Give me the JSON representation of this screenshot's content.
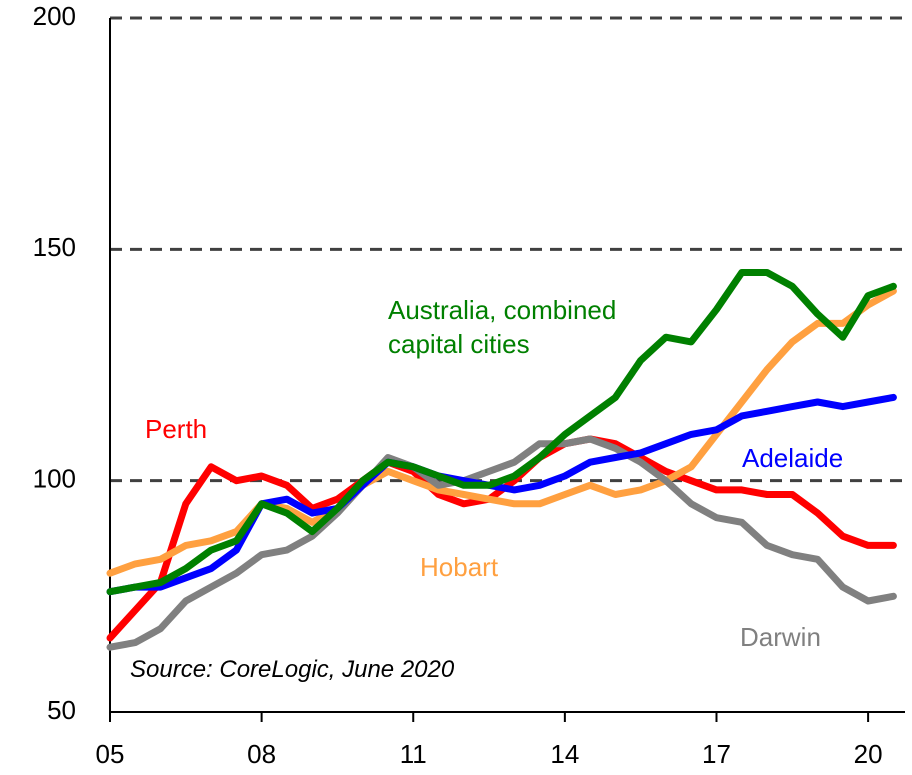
{
  "chart_data": {
    "type": "line",
    "annotations": [
      "Source: CoreLogic, June 2020"
    ],
    "x": [
      2005,
      2005.5,
      2006,
      2006.5,
      2007,
      2007.5,
      2008,
      2008.5,
      2009,
      2009.5,
      2010,
      2010.5,
      2011,
      2011.5,
      2012,
      2012.5,
      2013,
      2013.5,
      2014,
      2014.5,
      2015,
      2015.5,
      2016,
      2016.5,
      2017,
      2017.5,
      2018,
      2018.5,
      2019,
      2019.5,
      2020,
      2020.5
    ],
    "series": [
      {
        "name": "Perth",
        "color": "#ff0000",
        "values": [
          66,
          72,
          78,
          95,
          103,
          100,
          101,
          99,
          94,
          96,
          100,
          104,
          102,
          97,
          95,
          96,
          100,
          105,
          108,
          109,
          108,
          105,
          102,
          100,
          98,
          98,
          97,
          97,
          93,
          88,
          86,
          86
        ]
      },
      {
        "name": "Hobart",
        "color": "#ffa040",
        "values": [
          80,
          82,
          83,
          86,
          87,
          89,
          95,
          94,
          91,
          94,
          99,
          102,
          100,
          98,
          97,
          96,
          95,
          95,
          97,
          99,
          97,
          98,
          100,
          103,
          110,
          117,
          124,
          130,
          134,
          134,
          138,
          141
        ]
      },
      {
        "name": "Darwin",
        "color": "#808080",
        "values": [
          64,
          65,
          68,
          74,
          77,
          80,
          84,
          85,
          88,
          93,
          99,
          105,
          103,
          99,
          100,
          102,
          104,
          108,
          108,
          109,
          107,
          104,
          100,
          95,
          92,
          91,
          86,
          84,
          83,
          77,
          74,
          75
        ]
      },
      {
        "name": "Adelaide",
        "color": "#0000ff",
        "values": [
          76,
          77,
          77,
          79,
          81,
          85,
          95,
          96,
          93,
          94,
          99,
          104,
          103,
          101,
          100,
          99,
          98,
          99,
          101,
          104,
          105,
          106,
          108,
          110,
          111,
          114,
          115,
          116,
          117,
          116,
          117,
          118
        ]
      },
      {
        "name": "Australia, combined\ncapital cities",
        "color": "#008000",
        "values": [
          76,
          77,
          78,
          81,
          85,
          87,
          95,
          93,
          89,
          94,
          100,
          104,
          103,
          101,
          99,
          99,
          101,
          105,
          110,
          114,
          118,
          126,
          131,
          130,
          137,
          145,
          145,
          142,
          136,
          131,
          140,
          142
        ]
      }
    ],
    "xlim": [
      2005,
      2020.73
    ],
    "xticks": [
      {
        "value": 2005,
        "label": "05"
      },
      {
        "value": 2008,
        "label": "08"
      },
      {
        "value": 2011,
        "label": "11"
      },
      {
        "value": 2014,
        "label": "14"
      },
      {
        "value": 2017,
        "label": "17"
      },
      {
        "value": 2020,
        "label": "20"
      }
    ],
    "ylim": [
      50,
      200
    ],
    "yticks": [
      50,
      100,
      150,
      200
    ],
    "grid": true
  }
}
